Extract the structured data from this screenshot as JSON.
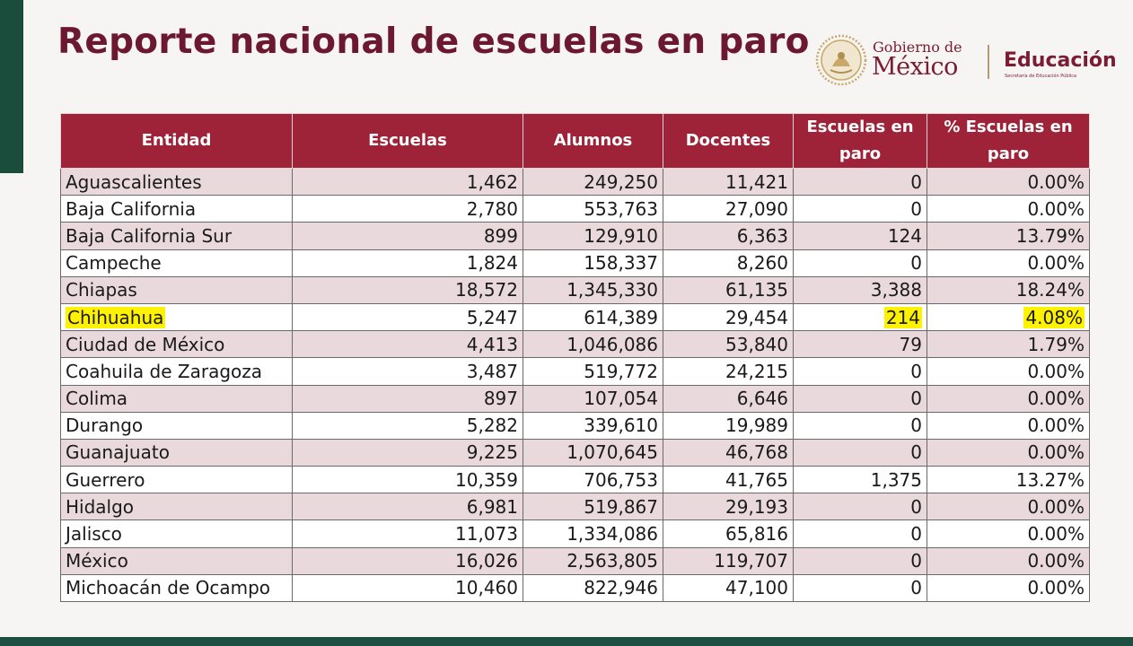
{
  "title": "Reporte nacional de escuelas en paro",
  "logo": {
    "gobierno_small": "Gobierno de",
    "gobierno_big": "México",
    "secretaria": "Educación",
    "secretaria_sub": "Secretaría de Educación Pública"
  },
  "colors": {
    "title": "#6b1830",
    "header_bg": "#9e2339",
    "row_shaded": "#ead9dc",
    "highlight": "#fff200",
    "accent_green": "#1a4d3b"
  },
  "table": {
    "headers": [
      "Entidad",
      "Escuelas",
      "Alumnos",
      "Docentes",
      "Escuelas en paro",
      "% Escuelas en paro"
    ],
    "rows": [
      [
        "Aguascalientes",
        "1,462",
        "249,250",
        "11,421",
        "0",
        "0.00%"
      ],
      [
        "Baja California",
        "2,780",
        "553,763",
        "27,090",
        "0",
        "0.00%"
      ],
      [
        "Baja California Sur",
        "899",
        "129,910",
        "6,363",
        "124",
        "13.79%"
      ],
      [
        "Campeche",
        "1,824",
        "158,337",
        "8,260",
        "0",
        "0.00%"
      ],
      [
        "Chiapas",
        "18,572",
        "1,345,330",
        "61,135",
        "3,388",
        "18.24%"
      ],
      [
        "Chihuahua",
        "5,247",
        "614,389",
        "29,454",
        "214",
        "4.08%"
      ],
      [
        "Ciudad de México",
        "4,413",
        "1,046,086",
        "53,840",
        "79",
        "1.79%"
      ],
      [
        "Coahuila de Zaragoza",
        "3,487",
        "519,772",
        "24,215",
        "0",
        "0.00%"
      ],
      [
        "Colima",
        "897",
        "107,054",
        "6,646",
        "0",
        "0.00%"
      ],
      [
        "Durango",
        "5,282",
        "339,610",
        "19,989",
        "0",
        "0.00%"
      ],
      [
        "Guanajuato",
        "9,225",
        "1,070,645",
        "46,768",
        "0",
        "0.00%"
      ],
      [
        "Guerrero",
        "10,359",
        "706,753",
        "41,765",
        "1,375",
        "13.27%"
      ],
      [
        "Hidalgo",
        "6,981",
        "519,867",
        "29,193",
        "0",
        "0.00%"
      ],
      [
        "Jalisco",
        "11,073",
        "1,334,086",
        "65,816",
        "0",
        "0.00%"
      ],
      [
        "México",
        "16,026",
        "2,563,805",
        "119,707",
        "0",
        "0.00%"
      ],
      [
        "Michoacán de Ocampo",
        "10,460",
        "822,946",
        "47,100",
        "0",
        "0.00%"
      ]
    ],
    "highlighted_row": "Chihuahua"
  }
}
